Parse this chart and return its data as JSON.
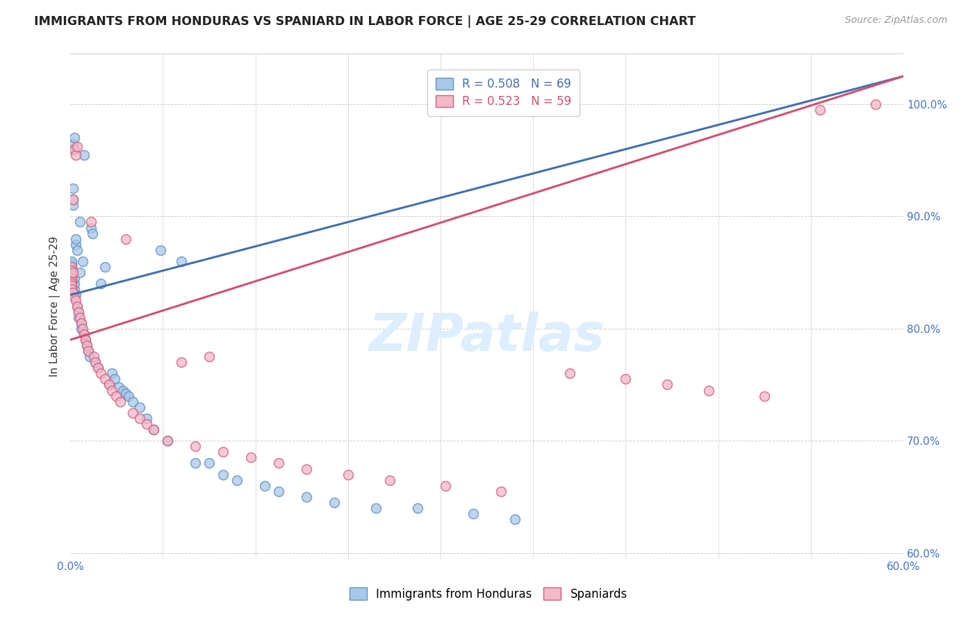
{
  "title": "IMMIGRANTS FROM HONDURAS VS SPANIARD IN LABOR FORCE | AGE 25-29 CORRELATION CHART",
  "source": "Source: ZipAtlas.com",
  "ylabel": "In Labor Force | Age 25-29",
  "xmin": 0.0,
  "xmax": 0.6,
  "ymin": 0.595,
  "ymax": 1.045,
  "yticks": [
    0.6,
    0.7,
    0.8,
    0.9,
    1.0
  ],
  "xtick_positions": [
    0.0,
    0.6
  ],
  "xtick_labels": [
    "0.0%",
    "60.0%"
  ],
  "series1_label": "Immigrants from Honduras",
  "series2_label": "Spaniards",
  "series1_R": 0.508,
  "series1_N": 69,
  "series2_R": 0.523,
  "series2_N": 59,
  "series1_color": "#a8c8e8",
  "series2_color": "#f4b8c8",
  "series1_edge": "#6090c0",
  "series2_edge": "#d06080",
  "line1_color": "#4070b0",
  "line2_color": "#d05070",
  "watermark_color": "#ddeeff",
  "line1_x0": 0.0,
  "line1_y0": 0.83,
  "line1_x1": 0.6,
  "line1_y1": 1.025,
  "line2_x0": 0.0,
  "line2_y0": 0.79,
  "line2_x1": 0.6,
  "line2_y1": 1.025,
  "series1_x": [
    0.001,
    0.001,
    0.001,
    0.001,
    0.001,
    0.001,
    0.001,
    0.001,
    0.001,
    0.001,
    0.002,
    0.002,
    0.002,
    0.002,
    0.002,
    0.003,
    0.003,
    0.003,
    0.003,
    0.004,
    0.004,
    0.004,
    0.005,
    0.005,
    0.006,
    0.006,
    0.007,
    0.007,
    0.008,
    0.008,
    0.009,
    0.01,
    0.01,
    0.011,
    0.012,
    0.013,
    0.014,
    0.015,
    0.016,
    0.018,
    0.02,
    0.022,
    0.025,
    0.028,
    0.03,
    0.032,
    0.035,
    0.038,
    0.04,
    0.042,
    0.045,
    0.05,
    0.055,
    0.06,
    0.065,
    0.07,
    0.08,
    0.09,
    0.1,
    0.11,
    0.12,
    0.14,
    0.15,
    0.17,
    0.19,
    0.22,
    0.25,
    0.29,
    0.32
  ],
  "series1_y": [
    0.855,
    0.858,
    0.842,
    0.848,
    0.853,
    0.856,
    0.86,
    0.85,
    0.845,
    0.84,
    0.925,
    0.91,
    0.915,
    0.96,
    0.965,
    0.97,
    0.835,
    0.84,
    0.845,
    0.83,
    0.875,
    0.88,
    0.87,
    0.82,
    0.815,
    0.81,
    0.895,
    0.85,
    0.805,
    0.8,
    0.86,
    0.795,
    0.955,
    0.79,
    0.785,
    0.78,
    0.775,
    0.89,
    0.885,
    0.77,
    0.765,
    0.84,
    0.855,
    0.75,
    0.76,
    0.755,
    0.748,
    0.745,
    0.742,
    0.74,
    0.735,
    0.73,
    0.72,
    0.71,
    0.87,
    0.7,
    0.86,
    0.68,
    0.68,
    0.67,
    0.665,
    0.66,
    0.655,
    0.65,
    0.645,
    0.64,
    0.64,
    0.635,
    0.63
  ],
  "series2_x": [
    0.001,
    0.001,
    0.001,
    0.001,
    0.001,
    0.001,
    0.001,
    0.001,
    0.002,
    0.002,
    0.002,
    0.003,
    0.003,
    0.004,
    0.004,
    0.005,
    0.005,
    0.006,
    0.007,
    0.008,
    0.009,
    0.01,
    0.011,
    0.012,
    0.013,
    0.015,
    0.017,
    0.018,
    0.02,
    0.022,
    0.025,
    0.028,
    0.03,
    0.033,
    0.036,
    0.04,
    0.045,
    0.05,
    0.055,
    0.06,
    0.07,
    0.08,
    0.09,
    0.1,
    0.11,
    0.13,
    0.15,
    0.17,
    0.2,
    0.23,
    0.27,
    0.31,
    0.36,
    0.4,
    0.43,
    0.46,
    0.5,
    0.54,
    0.58
  ],
  "series2_y": [
    0.855,
    0.852,
    0.848,
    0.845,
    0.842,
    0.84,
    0.838,
    0.835,
    0.915,
    0.85,
    0.832,
    0.828,
    0.96,
    0.955,
    0.825,
    0.82,
    0.962,
    0.815,
    0.81,
    0.805,
    0.8,
    0.795,
    0.79,
    0.785,
    0.78,
    0.895,
    0.775,
    0.77,
    0.765,
    0.76,
    0.755,
    0.75,
    0.745,
    0.74,
    0.735,
    0.88,
    0.725,
    0.72,
    0.715,
    0.71,
    0.7,
    0.77,
    0.695,
    0.775,
    0.69,
    0.685,
    0.68,
    0.675,
    0.67,
    0.665,
    0.66,
    0.655,
    0.76,
    0.755,
    0.75,
    0.745,
    0.74,
    0.995,
    1.0
  ]
}
